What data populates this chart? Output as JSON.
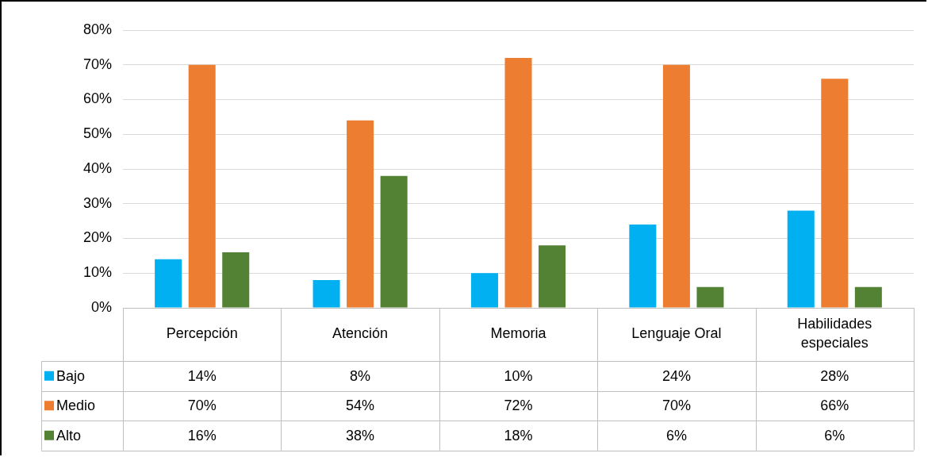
{
  "chart_data": {
    "type": "bar",
    "categories": [
      "Percepción",
      "Atención",
      "Memoria",
      "Lenguaje Oral",
      "Habilidades especiales"
    ],
    "series": [
      {
        "name": "Bajo",
        "color": "#00b0f0",
        "values": [
          14,
          8,
          10,
          24,
          28
        ],
        "value_labels": [
          "14%",
          "8%",
          "10%",
          "24%",
          "28%"
        ]
      },
      {
        "name": "Medio",
        "color": "#ed7d31",
        "values": [
          70,
          54,
          72,
          70,
          66
        ],
        "value_labels": [
          "70%",
          "54%",
          "72%",
          "70%",
          "66%"
        ]
      },
      {
        "name": "Alto",
        "color": "#548235",
        "values": [
          16,
          38,
          18,
          6,
          6
        ],
        "value_labels": [
          "16%",
          "38%",
          "18%",
          "6%",
          "6%"
        ]
      }
    ],
    "ylim": [
      0,
      80
    ],
    "yticks": [
      {
        "value": 0,
        "label": "0%"
      },
      {
        "value": 10,
        "label": "10%"
      },
      {
        "value": 20,
        "label": "20%"
      },
      {
        "value": 30,
        "label": "30%"
      },
      {
        "value": 40,
        "label": "40%"
      },
      {
        "value": 50,
        "label": "50%"
      },
      {
        "value": 60,
        "label": "60%"
      },
      {
        "value": 70,
        "label": "70%"
      },
      {
        "value": 80,
        "label": "80%"
      }
    ],
    "grid": "y",
    "legend": "bottom"
  }
}
